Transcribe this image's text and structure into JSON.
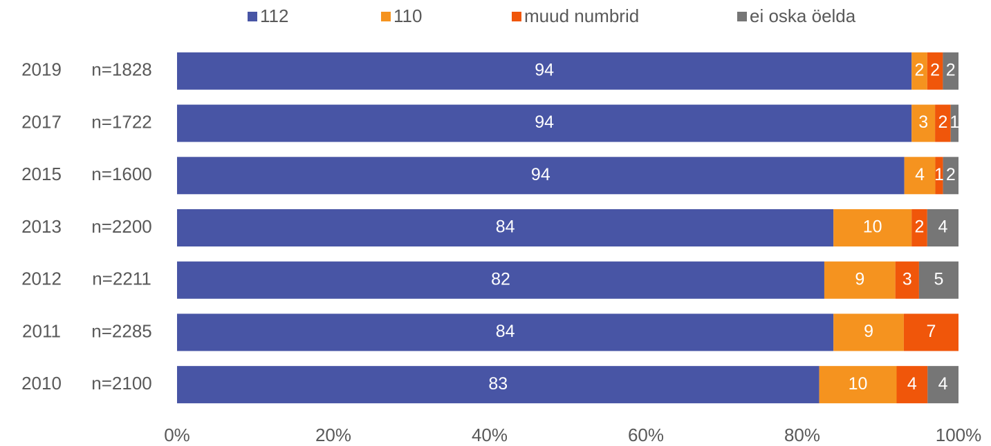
{
  "chart_data": {
    "type": "stacked_barh",
    "stack": "percent",
    "categories": [
      "2019",
      "2017",
      "2015",
      "2013",
      "2012",
      "2011",
      "2010"
    ],
    "sample_sizes": [
      "n=1828",
      "n=1722",
      "n=1600",
      "n=2200",
      "n=2211",
      "n=2285",
      "n=2100"
    ],
    "series": [
      {
        "name": "112",
        "color": "#4855a5",
        "values": [
          94,
          94,
          94,
          84,
          82,
          84,
          83
        ]
      },
      {
        "name": "110",
        "color": "#f5931f",
        "values": [
          2,
          3,
          4,
          10,
          9,
          9,
          10
        ]
      },
      {
        "name": "muud numbrid",
        "color": "#f0560a",
        "values": [
          2,
          2,
          1,
          2,
          3,
          7,
          4
        ]
      },
      {
        "name": "ei oska öelda",
        "color": "#767676",
        "values": [
          2,
          1,
          2,
          4,
          5,
          null,
          4
        ]
      }
    ],
    "xlim": [
      0,
      100
    ],
    "xticks": [
      {
        "value": 0,
        "label": "0%"
      },
      {
        "value": 20,
        "label": "20%"
      },
      {
        "value": 40,
        "label": "40%"
      },
      {
        "value": 60,
        "label": "60%"
      },
      {
        "value": 80,
        "label": "80%"
      },
      {
        "value": 100,
        "label": "100%"
      }
    ],
    "legend": "top"
  }
}
